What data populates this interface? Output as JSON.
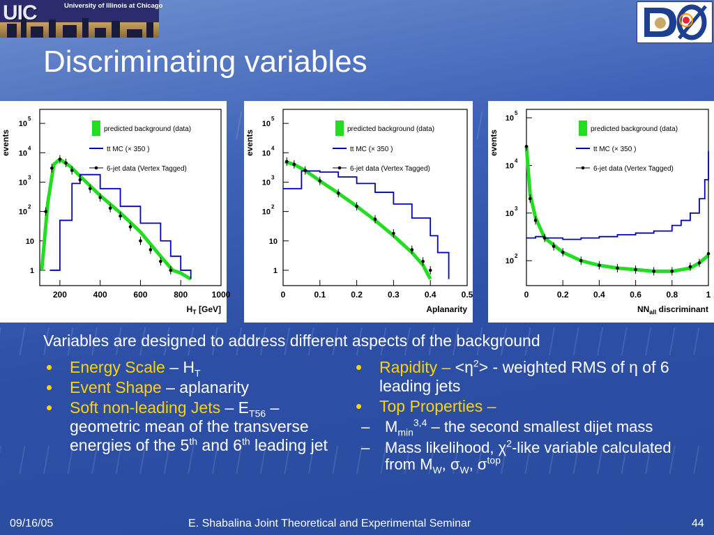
{
  "logo": {
    "uic_text": "UIC",
    "university": "University of Illinois at Chicago"
  },
  "title": "Discriminating variables",
  "subtitle": "Variables are designed to address different aspects of the background",
  "left_bullets": {
    "b1_label": "Energy Scale",
    "b1_rest": " – H",
    "b1_sub": "T",
    "b2_label": "Event Shape",
    "b2_rest": " – aplanarity",
    "b3_label": "Soft non-leading Jets",
    "b3_rest": " – E",
    "b3_sub": "T56",
    "b3_tail": " – geometric mean of the transverse energies of the 5",
    "b3_sup1": "th",
    "b3_and": " and 6",
    "b3_sup2": "th",
    "b3_end": " leading jet"
  },
  "right_bullets": {
    "r1_label": "Rapidity –",
    "r1_rest": " <η",
    "r1_sup": "2",
    "r1_tail": "> - weighted RMS of η of 6 leading jets",
    "r2_label": "Top Properties –",
    "s1_a": "M",
    "s1_sub": "min",
    "s1_sup": "3,4",
    "s1_tail": " – the second smallest dijet mass",
    "s2_a": "Mass likelihood, χ",
    "s2_sup": "2",
    "s2_b": "-like variable calculated from M",
    "s2_sub1": "W",
    "s2_c": ", σ",
    "s2_sub2": "W",
    "s2_d": ", σ",
    "s2_sup2": "top"
  },
  "footer": {
    "date": "09/16/05",
    "center": "E. Shabalina Joint Theoretical and Experimental Seminar",
    "page": "44"
  },
  "legend": {
    "bkg": "predicted background (data)",
    "mc": "tt MC (× 350 )",
    "data": "6-jet data (Vertex Tagged)"
  },
  "colors": {
    "bkg": "#22dd22",
    "mc": "#0000bb",
    "data": "#000000"
  },
  "chart_data": [
    {
      "type": "line",
      "ylabel": "events",
      "xlabel": "H_T [GeV]",
      "xlabel_main": "H",
      "xlabel_sub": "T",
      "xlabel_unit": " [GeV]",
      "log_y": true,
      "xlim": [
        100,
        1000
      ],
      "ylim": [
        0.3,
        300000
      ],
      "xticks": [
        "200",
        "400",
        "600",
        "800",
        "1000"
      ],
      "yticks": [
        "1",
        "10",
        "10^2",
        "10^3",
        "10^4",
        "10^5"
      ],
      "series": [
        {
          "name": "predicted background (data)",
          "x": [
            110,
            140,
            170,
            200,
            250,
            300,
            400,
            500,
            600,
            700,
            760,
            800,
            850
          ],
          "y": [
            1,
            200,
            4000,
            6000,
            3500,
            1600,
            350,
            90,
            20,
            3,
            1,
            0.8,
            0.5
          ]
        },
        {
          "name": "tt MC (× 350 )",
          "x": [
            150,
            200,
            260,
            300,
            400,
            500,
            600,
            700,
            750,
            800,
            850
          ],
          "y": [
            1,
            50,
            900,
            1800,
            600,
            150,
            40,
            10,
            3,
            1,
            0.5
          ]
        },
        {
          "name": "6-jet data (Vertex Tagged)",
          "x": [
            130,
            160,
            200,
            230,
            260,
            300,
            350,
            400,
            450,
            500,
            550,
            600,
            650,
            700,
            750
          ],
          "y": [
            100,
            3000,
            6000,
            4500,
            2500,
            1200,
            600,
            300,
            130,
            70,
            30,
            10,
            5,
            2,
            1
          ]
        }
      ]
    },
    {
      "type": "line",
      "ylabel": "events",
      "xlabel": "Aplanarity",
      "log_y": true,
      "xlim": [
        0,
        0.5
      ],
      "ylim": [
        0.3,
        300000
      ],
      "xticks": [
        "0",
        "0.1",
        "0.2",
        "0.3",
        "0.4",
        "0.5"
      ],
      "yticks": [
        "1",
        "10",
        "10^2",
        "10^3",
        "10^4",
        "10^5"
      ],
      "series": [
        {
          "name": "predicted background (data)",
          "x": [
            0.005,
            0.03,
            0.06,
            0.1,
            0.15,
            0.2,
            0.25,
            0.3,
            0.35,
            0.38,
            0.4
          ],
          "y": [
            5000,
            4000,
            2500,
            1100,
            420,
            150,
            50,
            15,
            4,
            1.5,
            0.5
          ]
        },
        {
          "name": "tt MC (× 350 )",
          "x": [
            0.0,
            0.05,
            0.1,
            0.15,
            0.2,
            0.25,
            0.3,
            0.35,
            0.4,
            0.42,
            0.45
          ],
          "y": [
            600,
            2400,
            2200,
            1500,
            900,
            450,
            180,
            60,
            15,
            4,
            0.5
          ]
        },
        {
          "name": "6-jet data (Vertex Tagged)",
          "x": [
            0.01,
            0.03,
            0.06,
            0.1,
            0.15,
            0.2,
            0.25,
            0.3,
            0.35,
            0.38,
            0.4
          ],
          "y": [
            5000,
            4000,
            2500,
            1100,
            420,
            150,
            55,
            18,
            5,
            2,
            1
          ]
        }
      ]
    },
    {
      "type": "line",
      "ylabel": "events",
      "xlabel": "NN_all discriminant",
      "xlabel_main": "NN",
      "xlabel_sub": "all",
      "xlabel_unit": " discriminant",
      "log_y": true,
      "xlim": [
        0,
        1
      ],
      "ylim": [
        30,
        150000
      ],
      "xticks": [
        "0",
        "0.2",
        "0.4",
        "0.6",
        "0.8",
        "1"
      ],
      "yticks": [
        "10^2",
        "10^3",
        "10^4",
        "10^5"
      ],
      "series": [
        {
          "name": "predicted background (data)",
          "x": [
            0.0,
            0.02,
            0.05,
            0.1,
            0.2,
            0.3,
            0.4,
            0.5,
            0.6,
            0.7,
            0.8,
            0.9,
            0.95,
            1.0
          ],
          "y": [
            25000,
            2500,
            800,
            300,
            150,
            100,
            80,
            70,
            65,
            60,
            60,
            70,
            90,
            130
          ]
        },
        {
          "name": "tt MC (× 350 )",
          "x": [
            0.0,
            0.05,
            0.1,
            0.2,
            0.3,
            0.4,
            0.5,
            0.6,
            0.7,
            0.8,
            0.85,
            0.9,
            0.95,
            0.98,
            1.0
          ],
          "y": [
            300,
            320,
            300,
            280,
            300,
            320,
            350,
            380,
            420,
            550,
            700,
            1000,
            2000,
            5000,
            20000
          ]
        },
        {
          "name": "6-jet data (Vertex Tagged)",
          "x": [
            0.0,
            0.02,
            0.05,
            0.1,
            0.15,
            0.2,
            0.3,
            0.4,
            0.5,
            0.6,
            0.7,
            0.8,
            0.9,
            0.95,
            1.0
          ],
          "y": [
            25000,
            2000,
            700,
            300,
            200,
            150,
            100,
            80,
            70,
            65,
            60,
            60,
            75,
            90,
            140
          ]
        }
      ]
    }
  ]
}
